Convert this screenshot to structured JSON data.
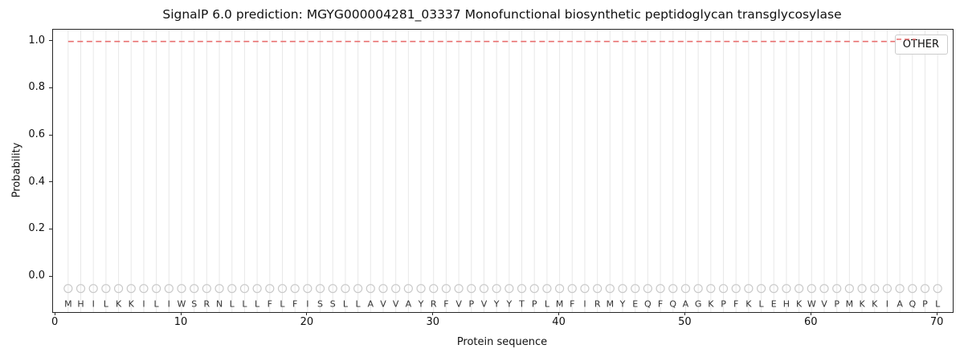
{
  "figure": {
    "title": "SignalP 6.0 prediction: MGYG000004281_03337 Monofunctional biosynthetic peptidoglycan transglycosylase",
    "xlabel": "Protein sequence",
    "ylabel": "Probability"
  },
  "legend": {
    "label": "OTHER",
    "position": "upper right"
  },
  "colors": {
    "other_line": "#e87070",
    "grid": "#e8e8e8",
    "marker": "#c9c9c9",
    "letter": "#333333",
    "spine": "#262626"
  },
  "axes": {
    "ytick_labels": [
      "0.0",
      "0.2",
      "0.4",
      "0.6",
      "0.8",
      "1.0"
    ],
    "ytick_values": [
      0.0,
      0.2,
      0.4,
      0.6,
      0.8,
      1.0
    ],
    "xtick_labels": [
      "0",
      "10",
      "20",
      "30",
      "40",
      "50",
      "60",
      "70"
    ],
    "xtick_values": [
      0,
      10,
      20,
      30,
      40,
      50,
      60,
      70
    ],
    "ylim": [
      -0.15,
      1.05
    ],
    "xlim": [
      -0.2,
      71.2
    ]
  },
  "sequence": [
    "M",
    "H",
    "I",
    "L",
    "K",
    "K",
    "I",
    "L",
    "I",
    "W",
    "S",
    "R",
    "N",
    "L",
    "L",
    "L",
    "F",
    "L",
    "F",
    "I",
    "S",
    "S",
    "L",
    "L",
    "A",
    "V",
    "V",
    "A",
    "Y",
    "R",
    "F",
    "V",
    "P",
    "V",
    "Y",
    "Y",
    "T",
    "P",
    "L",
    "M",
    "F",
    "I",
    "R",
    "M",
    "Y",
    "E",
    "Q",
    "F",
    "Q",
    "A",
    "G",
    "K",
    "P",
    "F",
    "K",
    "L",
    "E",
    "H",
    "K",
    "W",
    "V",
    "P",
    "M",
    "K",
    "K",
    "I",
    "A",
    "Q",
    "P",
    "L"
  ],
  "chart_data": {
    "type": "line",
    "title": "SignalP 6.0 prediction: MGYG000004281_03337 Monofunctional biosynthetic peptidoglycan transglycosylase",
    "xlabel": "Protein sequence",
    "ylabel": "Probability",
    "x": [
      1,
      2,
      3,
      4,
      5,
      6,
      7,
      8,
      9,
      10,
      11,
      12,
      13,
      14,
      15,
      16,
      17,
      18,
      19,
      20,
      21,
      22,
      23,
      24,
      25,
      26,
      27,
      28,
      29,
      30,
      31,
      32,
      33,
      34,
      35,
      36,
      37,
      38,
      39,
      40,
      41,
      42,
      43,
      44,
      45,
      46,
      47,
      48,
      49,
      50,
      51,
      52,
      53,
      54,
      55,
      56,
      57,
      58,
      59,
      60,
      61,
      62,
      63,
      64,
      65,
      66,
      67,
      68,
      69,
      70
    ],
    "series": [
      {
        "name": "OTHER",
        "style": "dashed",
        "values": [
          1.0,
          1.0,
          1.0,
          1.0,
          1.0,
          1.0,
          1.0,
          1.0,
          1.0,
          1.0,
          1.0,
          1.0,
          1.0,
          1.0,
          1.0,
          1.0,
          1.0,
          1.0,
          1.0,
          1.0,
          1.0,
          1.0,
          1.0,
          1.0,
          1.0,
          1.0,
          1.0,
          1.0,
          1.0,
          1.0,
          1.0,
          1.0,
          1.0,
          1.0,
          1.0,
          1.0,
          1.0,
          1.0,
          1.0,
          1.0,
          1.0,
          1.0,
          1.0,
          1.0,
          1.0,
          1.0,
          1.0,
          1.0,
          1.0,
          1.0,
          1.0,
          1.0,
          1.0,
          1.0,
          1.0,
          1.0,
          1.0,
          1.0,
          1.0,
          1.0,
          1.0,
          1.0,
          1.0,
          1.0,
          1.0,
          1.0,
          1.0,
          1.0,
          1.0,
          1.0
        ]
      }
    ],
    "marker_y": -0.05,
    "ylim": [
      -0.15,
      1.05
    ],
    "grid": "vertical gridline at every residue position",
    "legend_position": "upper right"
  }
}
